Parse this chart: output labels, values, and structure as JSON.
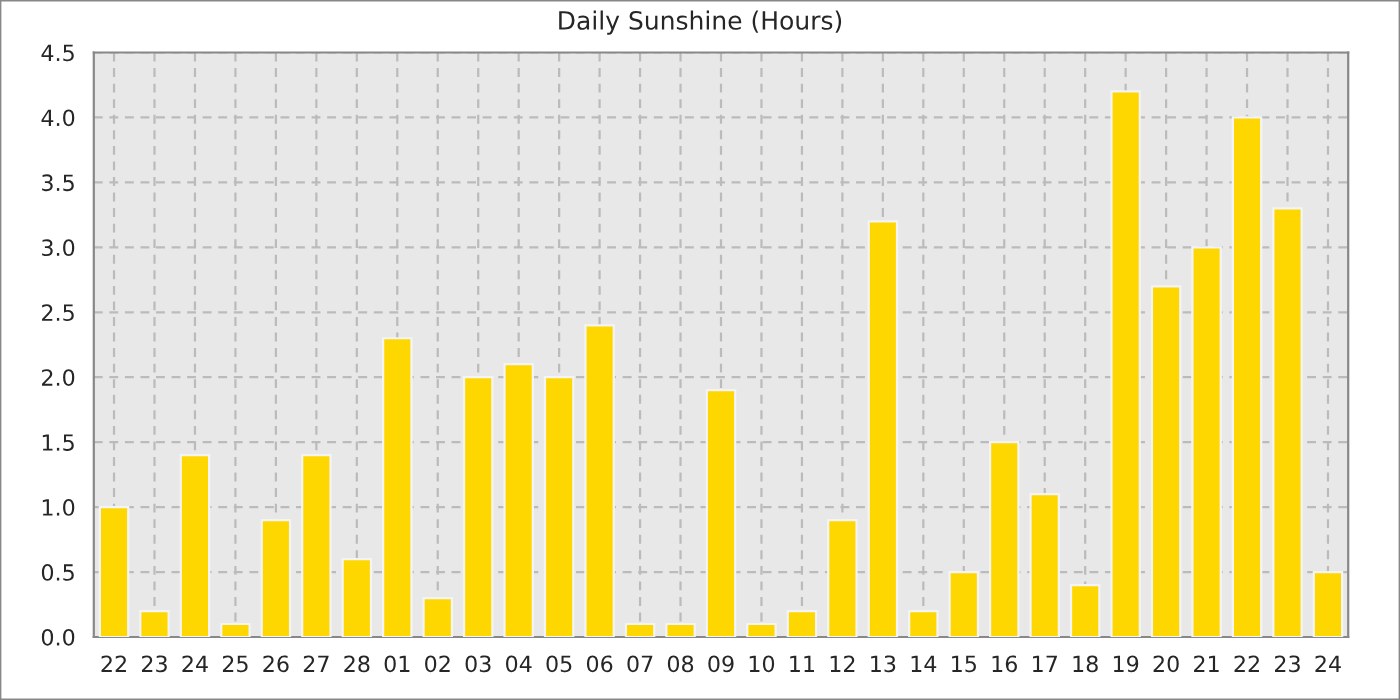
{
  "chart_data": {
    "type": "bar",
    "title": "Daily Sunshine (Hours)",
    "categories": [
      "22",
      "23",
      "24",
      "25",
      "26",
      "27",
      "28",
      "01",
      "02",
      "03",
      "04",
      "05",
      "06",
      "07",
      "08",
      "09",
      "10",
      "11",
      "12",
      "13",
      "14",
      "15",
      "16",
      "17",
      "18",
      "19",
      "20",
      "21",
      "22",
      "23",
      "24"
    ],
    "values": [
      1.0,
      0.2,
      1.4,
      0.1,
      0.9,
      1.4,
      0.6,
      2.3,
      0.3,
      2.0,
      2.1,
      2.0,
      2.4,
      0.1,
      0.1,
      1.9,
      0.1,
      0.2,
      0.9,
      3.2,
      0.2,
      0.5,
      1.5,
      1.1,
      0.4,
      4.2,
      2.7,
      3.0,
      4.0,
      3.3,
      0.5
    ],
    "color": "#ffd700",
    "ylim": [
      0,
      4.5
    ],
    "yticks": [
      {
        "value": 0,
        "label": "0.0"
      },
      {
        "value": 0.5,
        "label": "0.5"
      },
      {
        "value": 1,
        "label": "1.0"
      },
      {
        "value": 1.5,
        "label": "1.5"
      },
      {
        "value": 2,
        "label": "2.0"
      },
      {
        "value": 2.5,
        "label": "2.5"
      },
      {
        "value": 3,
        "label": "3.0"
      },
      {
        "value": 3.5,
        "label": "3.5"
      },
      {
        "value": 4,
        "label": "4.0"
      },
      {
        "value": 4.5,
        "label": "4.5"
      }
    ],
    "grid": true
  }
}
